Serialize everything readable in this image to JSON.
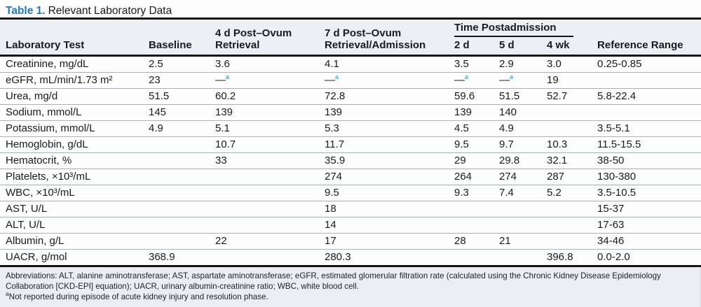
{
  "title": {
    "label": "Table 1.",
    "text": "Relevant Laboratory Data"
  },
  "colors": {
    "title_blue": "#2279b5",
    "dash_superscript_blue": "#5ba4c9",
    "header_band_bg": "#eceff4",
    "footnote_band_bg": "#eaeef4",
    "rule_black": "#151515"
  },
  "table": {
    "group_header": "Time Postadmission",
    "columns": [
      "Laboratory Test",
      "Baseline",
      "4 d Post–Ovum Retrieval",
      "7 d Post–Ovum Retrieval/Admission",
      "2 d",
      "5 d",
      "4 wk",
      "Reference Range"
    ],
    "rows": [
      [
        "Creatinine, mg/dL",
        "2.5",
        "3.6",
        "4.1",
        "3.5",
        "2.9",
        "3.0",
        "0.25-0.85"
      ],
      [
        "eGFR, mL/min/1.73 m²",
        "23",
        "—^a",
        "—^a",
        "—^a",
        "—^a",
        "19",
        ""
      ],
      [
        "Urea, mg/d",
        "51.5",
        "60.2",
        "72.8",
        "59.6",
        "51.5",
        "52.7",
        "5.8-22.4"
      ],
      [
        "Sodium, mmol/L",
        "145",
        "139",
        "139",
        "139",
        "140",
        "",
        ""
      ],
      [
        "Potassium, mmol/L",
        "4.9",
        "5.1",
        "5.3",
        "4.5",
        "4.9",
        "",
        "3.5-5.1"
      ],
      [
        "Hemoglobin, g/dL",
        "",
        "10.7",
        "11.7",
        "9.5",
        "9.7",
        "10.3",
        "11.5-15.5"
      ],
      [
        "Hematocrit, %",
        "",
        "33",
        "35.9",
        "29",
        "29.8",
        "32.1",
        "38-50"
      ],
      [
        "Platelets, ×10³/mL",
        "",
        "",
        "274",
        "264",
        "274",
        "287",
        "130-380"
      ],
      [
        "WBC, ×10³/mL",
        "",
        "",
        "9.5",
        "9.3",
        "7.4",
        "5.2",
        "3.5-10.5"
      ],
      [
        "AST, U/L",
        "",
        "",
        "18",
        "",
        "",
        "",
        "15-37"
      ],
      [
        "ALT, U/L",
        "",
        "",
        "14",
        "",
        "",
        "",
        "17-63"
      ],
      [
        "Albumin, g/L",
        "",
        "22",
        "17",
        "28",
        "21",
        "",
        "34-46"
      ],
      [
        "UACR, g/mol",
        "368.9",
        "",
        "280.3",
        "",
        "",
        "396.8",
        "0.0-2.0"
      ]
    ]
  },
  "footnotes": {
    "abbreviations": "Abbreviations: ALT, alanine aminotransferase; AST, aspartate aminotransferase; eGFR, estimated glomerular filtration rate (calculated using the Chronic Kidney Disease Epidemiology Collaboration [CKD-EPI] equation); UACR, urinary albumin-creatinine ratio; WBC, white blood cell.",
    "a_marker": "a",
    "a_text": "Not reported during episode of acute kidney injury and resolution phase."
  }
}
